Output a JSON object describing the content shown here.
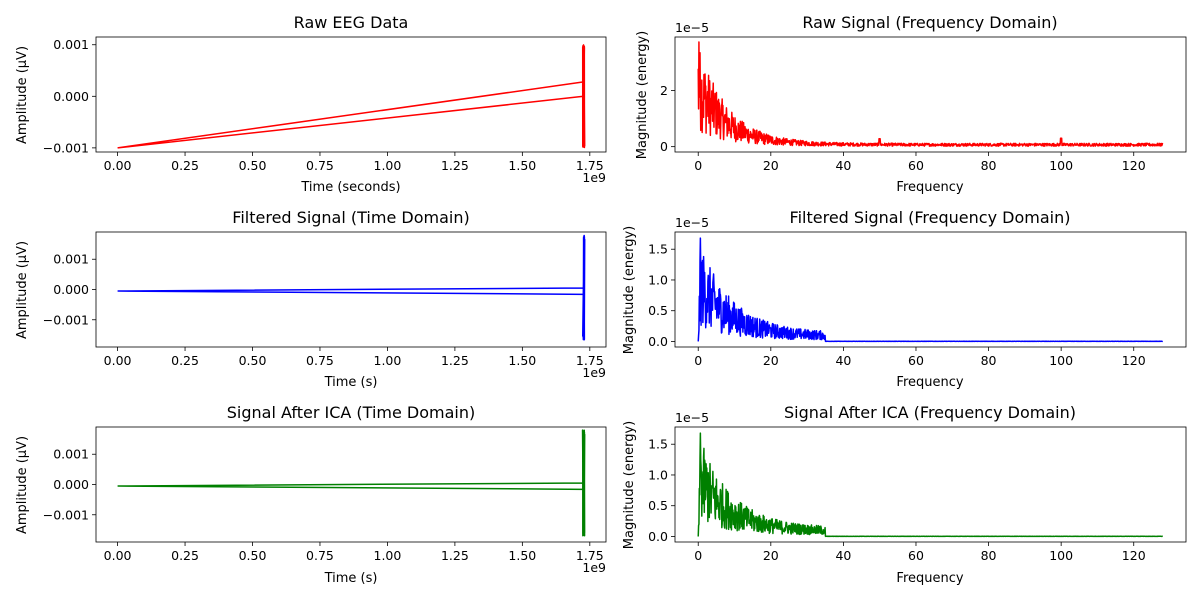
{
  "chart_data": [
    {
      "type": "line",
      "title": "Raw EEG Data",
      "xlabel": "Time (seconds)",
      "ylabel": "Amplitude (µV)",
      "color": "#ff0000",
      "x_offset_text": "1e9",
      "y_offset_text": "",
      "xlim": [
        -0.08,
        1.81
      ],
      "ylim": [
        -0.00108,
        0.00115
      ],
      "x_ticks": [
        0,
        0.25,
        0.5,
        0.75,
        1.0,
        1.25,
        1.5,
        1.75
      ],
      "x_tick_labels": [
        "0.00",
        "0.25",
        "0.50",
        "0.75",
        "1.00",
        "1.25",
        "1.50",
        "1.75"
      ],
      "y_ticks": [
        -0.001,
        0.0,
        0.001
      ],
      "y_tick_labels": [
        "−0.001",
        "0.000",
        "0.001"
      ],
      "signal": {
        "kind": "time",
        "t0": 0,
        "t1": 1.727,
        "start": -0.001,
        "mid": 0.00028,
        "end": 0.0,
        "burst_min": -0.001,
        "burst_max": 0.001
      }
    },
    {
      "type": "line",
      "title": "Raw Signal (Frequency Domain)",
      "xlabel": "Frequency",
      "ylabel": "Magnitude (energy)",
      "color": "#ff0000",
      "x_offset_text": "",
      "y_offset_text": "1e−5",
      "xlim": [
        -6.4,
        134.4
      ],
      "ylim": [
        -0.19,
        3.9
      ],
      "x_ticks": [
        0,
        20,
        40,
        60,
        80,
        100,
        120
      ],
      "x_tick_labels": [
        "0",
        "20",
        "40",
        "60",
        "80",
        "100",
        "120"
      ],
      "y_ticks": [
        0,
        2
      ],
      "y_tick_labels": [
        "0",
        "2"
      ],
      "signal": {
        "kind": "spectrum",
        "peak": 3.72,
        "decay": 8.0,
        "floor": 0.12,
        "cutoff": null,
        "spikes": [
          [
            50,
            0.28
          ],
          [
            100,
            0.3
          ]
        ]
      }
    },
    {
      "type": "line",
      "title": "Filtered Signal (Time Domain)",
      "xlabel": "Time (s)",
      "ylabel": "Amplitude (µV)",
      "color": "#0000ff",
      "x_offset_text": "1e9",
      "y_offset_text": "",
      "xlim": [
        -0.08,
        1.81
      ],
      "ylim": [
        -0.0019,
        0.0019
      ],
      "x_ticks": [
        0,
        0.25,
        0.5,
        0.75,
        1.0,
        1.25,
        1.5,
        1.75
      ],
      "x_tick_labels": [
        "0.00",
        "0.25",
        "0.50",
        "0.75",
        "1.00",
        "1.25",
        "1.50",
        "1.75"
      ],
      "y_ticks": [
        -0.001,
        0.0,
        0.001
      ],
      "y_tick_labels": [
        "−0.001",
        "0.000",
        "0.001"
      ],
      "signal": {
        "kind": "time",
        "t0": 0,
        "t1": 1.727,
        "start": -5e-05,
        "mid": 5e-05,
        "end": -0.00016,
        "burst_min": -0.0017,
        "burst_max": 0.0018
      }
    },
    {
      "type": "line",
      "title": "Filtered Signal (Frequency Domain)",
      "xlabel": "Frequency",
      "ylabel": "Magnitude (energy)",
      "color": "#0000ff",
      "x_offset_text": "",
      "y_offset_text": "1e−5",
      "xlim": [
        -6.4,
        134.4
      ],
      "ylim": [
        -0.09,
        1.78
      ],
      "x_ticks": [
        0,
        20,
        40,
        60,
        80,
        100,
        120
      ],
      "x_tick_labels": [
        "0",
        "20",
        "40",
        "60",
        "80",
        "100",
        "120"
      ],
      "y_ticks": [
        0.0,
        0.5,
        1.0,
        1.5
      ],
      "y_tick_labels": [
        "0.0",
        "0.5",
        "1.0",
        "1.5"
      ],
      "signal": {
        "kind": "spectrum",
        "peak": 1.68,
        "decay": 9.0,
        "floor": 0.14,
        "cutoff": 35,
        "spikes": []
      }
    },
    {
      "type": "line",
      "title": "Signal After ICA (Time Domain)",
      "xlabel": "Time (s)",
      "ylabel": "Amplitude (µV)",
      "color": "#008000",
      "x_offset_text": "1e9",
      "y_offset_text": "",
      "xlim": [
        -0.08,
        1.81
      ],
      "ylim": [
        -0.0019,
        0.0019
      ],
      "x_ticks": [
        0,
        0.25,
        0.5,
        0.75,
        1.0,
        1.25,
        1.5,
        1.75
      ],
      "x_tick_labels": [
        "0.00",
        "0.25",
        "0.50",
        "0.75",
        "1.00",
        "1.25",
        "1.50",
        "1.75"
      ],
      "y_ticks": [
        -0.001,
        0.0,
        0.001
      ],
      "y_tick_labels": [
        "−0.001",
        "0.000",
        "0.001"
      ],
      "signal": {
        "kind": "time",
        "t0": 0,
        "t1": 1.727,
        "start": -5e-05,
        "mid": 5e-05,
        "end": -0.00016,
        "burst_min": -0.0017,
        "burst_max": 0.0018
      }
    },
    {
      "type": "line",
      "title": "Signal After ICA (Frequency Domain)",
      "xlabel": "Frequency",
      "ylabel": "Magnitude (energy)",
      "color": "#008000",
      "x_offset_text": "",
      "y_offset_text": "1e−5",
      "xlim": [
        -6.4,
        134.4
      ],
      "ylim": [
        -0.09,
        1.78
      ],
      "x_ticks": [
        0,
        20,
        40,
        60,
        80,
        100,
        120
      ],
      "x_tick_labels": [
        "0",
        "20",
        "40",
        "60",
        "80",
        "100",
        "120"
      ],
      "y_ticks": [
        0.0,
        0.5,
        1.0,
        1.5
      ],
      "y_tick_labels": [
        "0.0",
        "0.5",
        "1.0",
        "1.5"
      ],
      "signal": {
        "kind": "spectrum",
        "peak": 1.68,
        "decay": 9.0,
        "floor": 0.14,
        "cutoff": 35,
        "spikes": []
      }
    }
  ]
}
